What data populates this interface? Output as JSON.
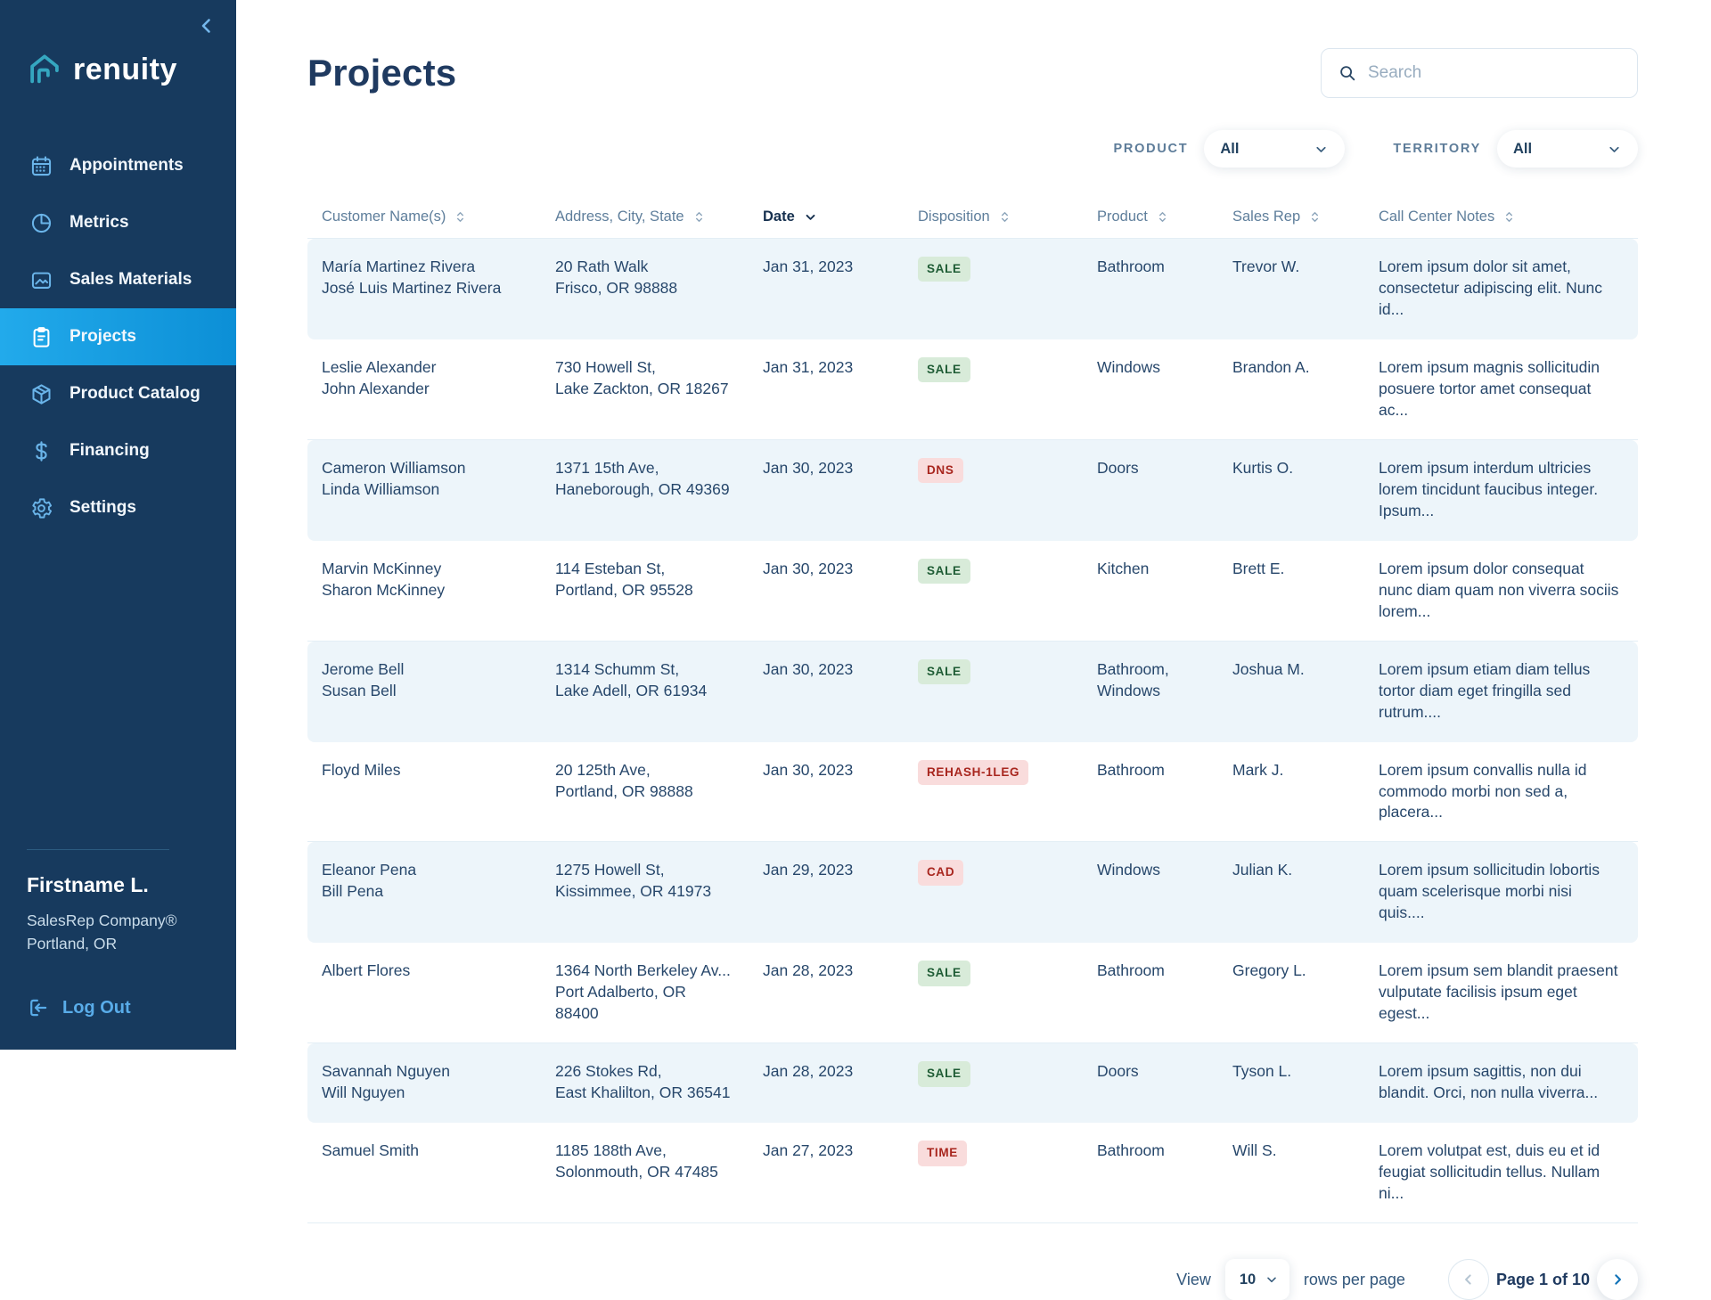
{
  "sidebar": {
    "logo_text": "renuity",
    "items": [
      {
        "label": "Appointments",
        "icon": "calendar-icon",
        "active": false
      },
      {
        "label": "Metrics",
        "icon": "pie-chart-icon",
        "active": false
      },
      {
        "label": "Sales Materials",
        "icon": "image-icon",
        "active": false
      },
      {
        "label": "Projects",
        "icon": "clipboard-icon",
        "active": true
      },
      {
        "label": "Product Catalog",
        "icon": "package-icon",
        "active": false
      },
      {
        "label": "Financing",
        "icon": "dollar-icon",
        "active": false
      },
      {
        "label": "Settings",
        "icon": "gear-icon",
        "active": false
      }
    ],
    "user": {
      "name": "Firstname L.",
      "company": "SalesRep Company®",
      "location": "Portland, OR"
    },
    "logout_label": "Log Out"
  },
  "header": {
    "title": "Projects",
    "search_placeholder": "Search"
  },
  "filters": {
    "product": {
      "label": "PRODUCT",
      "value": "All"
    },
    "territory": {
      "label": "TERRITORY",
      "value": "All"
    }
  },
  "table": {
    "columns": [
      {
        "label": "Customer Name(s)",
        "sort": "both"
      },
      {
        "label": "Address, City, State",
        "sort": "both"
      },
      {
        "label": "Date",
        "sort": "desc",
        "active": true
      },
      {
        "label": "Disposition",
        "sort": "both"
      },
      {
        "label": "Product",
        "sort": "both"
      },
      {
        "label": "Sales Rep",
        "sort": "both"
      },
      {
        "label": "Call Center Notes",
        "sort": "both"
      }
    ],
    "rows": [
      {
        "names": [
          "María Martinez Rivera",
          "José Luis Martinez Rivera"
        ],
        "address": [
          "20 Rath Walk",
          "Frisco, OR 98888"
        ],
        "date": "Jan 31, 2023",
        "disposition": {
          "label": "SALE",
          "tone": "green"
        },
        "product": "Bathroom",
        "sales_rep": "Trevor W.",
        "notes": "Lorem ipsum dolor sit amet, consectetur adipiscing elit. Nunc id..."
      },
      {
        "names": [
          "Leslie Alexander",
          "John Alexander"
        ],
        "address": [
          "730 Howell St,",
          "Lake Zackton, OR 18267"
        ],
        "date": "Jan 31, 2023",
        "disposition": {
          "label": "SALE",
          "tone": "green"
        },
        "product": "Windows",
        "sales_rep": "Brandon A.",
        "notes": "Lorem ipsum magnis sollicitudin posuere tortor amet consequat ac..."
      },
      {
        "names": [
          "Cameron Williamson",
          "Linda Williamson"
        ],
        "address": [
          "1371 15th Ave,",
          "Haneborough, OR 49369"
        ],
        "date": "Jan 30, 2023",
        "disposition": {
          "label": "DNS",
          "tone": "red"
        },
        "product": "Doors",
        "sales_rep": "Kurtis O.",
        "notes": "Lorem ipsum interdum ultricies lorem tincidunt faucibus integer. Ipsum..."
      },
      {
        "names": [
          "Marvin McKinney",
          "Sharon McKinney"
        ],
        "address": [
          "114 Esteban St,",
          "Portland, OR 95528"
        ],
        "date": "Jan 30, 2023",
        "disposition": {
          "label": "SALE",
          "tone": "green"
        },
        "product": "Kitchen",
        "sales_rep": "Brett E.",
        "notes": "Lorem ipsum dolor consequat nunc diam quam non viverra sociis lorem..."
      },
      {
        "names": [
          "Jerome Bell",
          "Susan Bell"
        ],
        "address": [
          "1314 Schumm St,",
          "Lake Adell, OR 61934"
        ],
        "date": "Jan 30, 2023",
        "disposition": {
          "label": "SALE",
          "tone": "green"
        },
        "product": "Bathroom, Windows",
        "sales_rep": "Joshua M.",
        "notes": "Lorem ipsum etiam diam tellus tortor diam eget fringilla sed rutrum...."
      },
      {
        "names": [
          "Floyd Miles"
        ],
        "address": [
          "20 125th Ave,",
          "Portland, OR 98888"
        ],
        "date": "Jan 30, 2023",
        "disposition": {
          "label": "REHASH-1LEG",
          "tone": "red"
        },
        "product": "Bathroom",
        "sales_rep": "Mark J.",
        "notes": "Lorem ipsum convallis nulla id commodo morbi non sed a, placera..."
      },
      {
        "names": [
          "Eleanor Pena",
          "Bill Pena"
        ],
        "address": [
          "1275 Howell St,",
          "Kissimmee, OR 41973"
        ],
        "date": "Jan 29, 2023",
        "disposition": {
          "label": "CAD",
          "tone": "red"
        },
        "product": "Windows",
        "sales_rep": "Julian K.",
        "notes": "Lorem ipsum sollicitudin lobortis quam scelerisque morbi nisi quis...."
      },
      {
        "names": [
          "Albert Flores"
        ],
        "address": [
          "1364 North Berkeley Av...",
          "Port Adalberto, OR",
          "88400"
        ],
        "date": "Jan 28, 2023",
        "disposition": {
          "label": "SALE",
          "tone": "green"
        },
        "product": "Bathroom",
        "sales_rep": "Gregory L.",
        "notes": "Lorem ipsum sem blandit praesent vulputate facilisis ipsum eget egest..."
      },
      {
        "names": [
          "Savannah Nguyen",
          "Will Nguyen"
        ],
        "address": [
          "226 Stokes Rd,",
          "East Khalilton, OR 36541"
        ],
        "date": "Jan 28, 2023",
        "disposition": {
          "label": "SALE",
          "tone": "green"
        },
        "product": "Doors",
        "sales_rep": "Tyson L.",
        "notes": "Lorem ipsum sagittis, non dui blandit. Orci, non nulla viverra..."
      },
      {
        "names": [
          "Samuel Smith"
        ],
        "address": [
          "1185 188th Ave,",
          "Solonmouth, OR 47485"
        ],
        "date": "Jan 27, 2023",
        "disposition": {
          "label": "TIME",
          "tone": "red"
        },
        "product": "Bathroom",
        "sales_rep": "Will S.",
        "notes": "Lorem volutpat est, duis eu et id feugiat sollicitudin tellus. Nullam ni..."
      }
    ]
  },
  "pagination": {
    "view_label": "View",
    "rows_per_page_value": "10",
    "rows_per_page_label": "rows per page",
    "page_label": "Page 1 of 10"
  },
  "colors": {
    "sidebar_bg": "#173a5e",
    "active_nav_gradient": [
      "#22aaeb",
      "#0c8fd6"
    ],
    "nav_icon_blue": "#6ab4e9",
    "logo_teal": "#35a7c0",
    "title_navy": "#1f3a60",
    "zebra_row": "#edf5fa",
    "badge_green_bg": "#d8ebd9",
    "badge_green_text": "#1f5c35",
    "badge_red_bg": "#f9dcdc",
    "badge_red_text": "#a8261e"
  }
}
